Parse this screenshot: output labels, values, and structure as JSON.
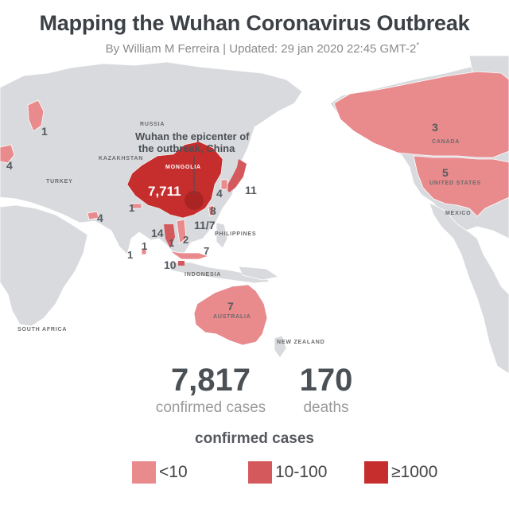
{
  "title": "Mapping the Wuhan Coronavirus Outbreak",
  "subtitle": "By William M Ferreira | Updated: 29 jan 2020 22:45 GMT-2",
  "subtitle_mark": "*",
  "callout": {
    "line1": "Wuhan the epicenter of",
    "line2": "the outbreak, China"
  },
  "country_labels": {
    "russia": "RUSSIA",
    "kazakhstan": "KAZAKHSTAN",
    "mongolia": "MONGOLIA",
    "canada": "CANADA",
    "united_states": "UNITED STATES",
    "indonesia": "INDONESIA",
    "australia": "AUSTRALIA",
    "south_africa": "SOUTH AFRICA",
    "new_zealand": "NEW ZEALAND",
    "mexico": "MEXICO",
    "philippines": "PHILIPPINES",
    "turkey": "TURKEY"
  },
  "case_counts": {
    "china": "7,711",
    "finland": "1",
    "germany": "4",
    "uae": "4",
    "sri_lanka": "1",
    "nepal": "1",
    "japan": "11",
    "south_korea": "4",
    "taiwan": "8",
    "hong_kong_macau": "11/7",
    "thailand": "14",
    "vietnam": "2",
    "cambodia": "1",
    "malaysia": "7",
    "singapore": "10",
    "india": "1",
    "canada": "3",
    "united_states": "5",
    "australia": "7"
  },
  "stats": {
    "confirmed_value": "7,817",
    "confirmed_label": "confirmed cases",
    "deaths_value": "170",
    "deaths_label": "deaths"
  },
  "legend": {
    "title": "confirmed cases",
    "items": [
      {
        "label": "<10",
        "color": "#e98a8d"
      },
      {
        "label": "10-100",
        "color": "#d4595c"
      },
      {
        "label": "≥1000",
        "color": "#c62e2e"
      }
    ]
  },
  "colors": {
    "land": "#d8dadd",
    "lt10": "#e98a8d",
    "mid": "#d4595c",
    "high": "#c62e2e"
  }
}
